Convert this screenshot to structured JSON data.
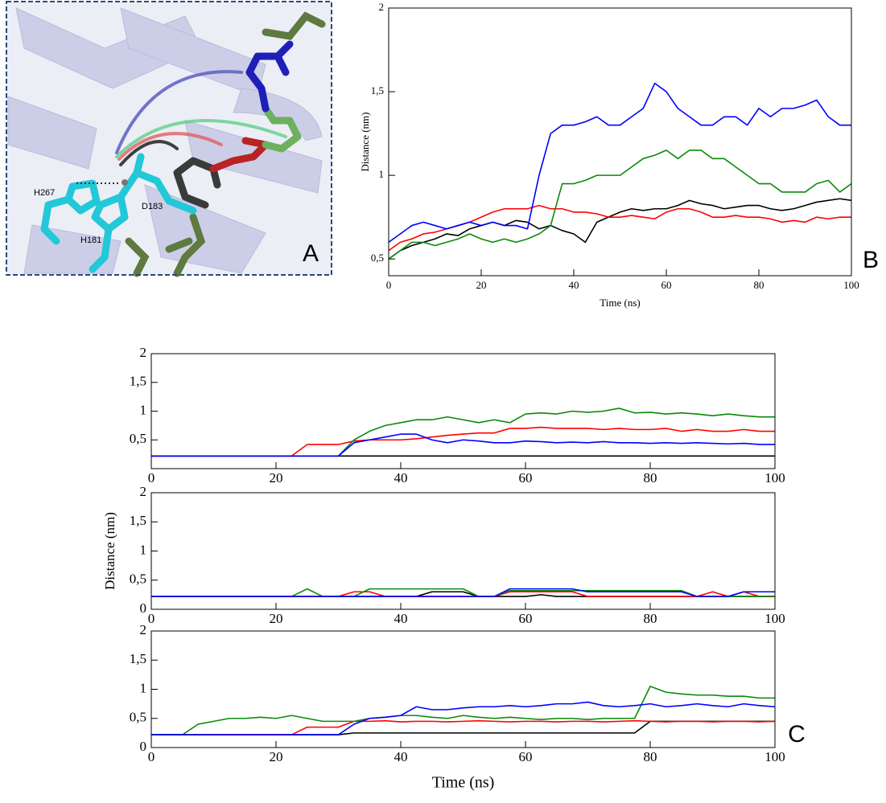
{
  "panel_a": {
    "labels": [
      "H267",
      "D183",
      "H181"
    ],
    "panel_label": "A"
  },
  "chart_data": [
    {
      "type": "line",
      "panel_label": "B",
      "x_label": "Time (ns)",
      "y_label": "Distance (nm)",
      "xlim": [
        0,
        100
      ],
      "ylim": [
        0.4,
        2
      ],
      "xticks": [
        0,
        20,
        40,
        60,
        80,
        100
      ],
      "yticks": [
        {
          "value": 0.5,
          "label": "0,5"
        },
        1,
        {
          "value": 1.5,
          "label": "1,5"
        },
        2
      ],
      "x": [
        0,
        2.5,
        5,
        7.5,
        10,
        12.5,
        15,
        17.5,
        20,
        22.5,
        25,
        27.5,
        30,
        32.5,
        35,
        37.5,
        40,
        42.5,
        45,
        47.5,
        50,
        52.5,
        55,
        57.5,
        60,
        62.5,
        65,
        67.5,
        70,
        72.5,
        75,
        77.5,
        80,
        82.5,
        85,
        87.5,
        90,
        92.5,
        95,
        97.5,
        100
      ],
      "series": [
        {
          "color": "#000000",
          "values": [
            0.5,
            0.55,
            0.58,
            0.6,
            0.62,
            0.65,
            0.64,
            0.68,
            0.7,
            0.72,
            0.7,
            0.73,
            0.72,
            0.68,
            0.7,
            0.67,
            0.65,
            0.6,
            0.72,
            0.75,
            0.78,
            0.8,
            0.79,
            0.8,
            0.8,
            0.82,
            0.85,
            0.83,
            0.82,
            0.8,
            0.81,
            0.82,
            0.82,
            0.8,
            0.79,
            0.8,
            0.82,
            0.84,
            0.85,
            0.86,
            0.85
          ]
        },
        {
          "color": "#ff0000",
          "values": [
            0.55,
            0.6,
            0.62,
            0.65,
            0.66,
            0.68,
            0.7,
            0.72,
            0.75,
            0.78,
            0.8,
            0.8,
            0.8,
            0.82,
            0.8,
            0.8,
            0.78,
            0.78,
            0.77,
            0.75,
            0.75,
            0.76,
            0.75,
            0.74,
            0.78,
            0.8,
            0.8,
            0.78,
            0.75,
            0.75,
            0.76,
            0.75,
            0.75,
            0.74,
            0.72,
            0.73,
            0.72,
            0.75,
            0.74,
            0.75,
            0.75
          ]
        },
        {
          "color": "#0a8a0a",
          "values": [
            0.5,
            0.55,
            0.6,
            0.6,
            0.58,
            0.6,
            0.62,
            0.65,
            0.62,
            0.6,
            0.62,
            0.6,
            0.62,
            0.65,
            0.7,
            0.95,
            0.95,
            0.97,
            1.0,
            1.0,
            1.0,
            1.05,
            1.1,
            1.12,
            1.15,
            1.1,
            1.15,
            1.15,
            1.1,
            1.1,
            1.05,
            1.0,
            0.95,
            0.95,
            0.9,
            0.9,
            0.9,
            0.95,
            0.97,
            0.9,
            0.95
          ]
        },
        {
          "color": "#0000ff",
          "values": [
            0.6,
            0.65,
            0.7,
            0.72,
            0.7,
            0.68,
            0.7,
            0.72,
            0.7,
            0.72,
            0.7,
            0.7,
            0.68,
            1.0,
            1.25,
            1.3,
            1.3,
            1.32,
            1.35,
            1.3,
            1.3,
            1.35,
            1.4,
            1.55,
            1.5,
            1.4,
            1.35,
            1.3,
            1.3,
            1.35,
            1.35,
            1.3,
            1.4,
            1.35,
            1.4,
            1.4,
            1.42,
            1.45,
            1.35,
            1.3,
            1.3
          ]
        }
      ]
    },
    {
      "type": "line",
      "xlim": [
        0,
        100
      ],
      "ylim": [
        0,
        2
      ],
      "xticks": [
        0,
        20,
        40,
        60,
        80,
        100
      ],
      "yticks": [
        {
          "value": 0.5,
          "label": "0,5"
        },
        1,
        {
          "value": 1.5,
          "label": "1,5"
        },
        2
      ],
      "x": [
        0,
        2.5,
        5,
        7.5,
        10,
        12.5,
        15,
        17.5,
        20,
        22.5,
        25,
        27.5,
        30,
        32.5,
        35,
        37.5,
        40,
        42.5,
        45,
        47.5,
        50,
        52.5,
        55,
        57.5,
        60,
        62.5,
        65,
        67.5,
        70,
        72.5,
        75,
        77.5,
        80,
        82.5,
        85,
        87.5,
        90,
        92.5,
        95,
        97.5,
        100
      ],
      "series": [
        {
          "color": "#000000",
          "values": [
            0.22,
            0.22,
            0.22,
            0.22,
            0.22,
            0.22,
            0.22,
            0.22,
            0.22,
            0.22,
            0.22,
            0.22,
            0.22,
            0.22,
            0.22,
            0.22,
            0.22,
            0.22,
            0.22,
            0.22,
            0.22,
            0.22,
            0.22,
            0.22,
            0.22,
            0.22,
            0.22,
            0.22,
            0.22,
            0.22,
            0.22,
            0.22,
            0.22,
            0.22,
            0.22,
            0.22,
            0.22,
            0.22,
            0.22,
            0.22,
            0.22
          ]
        },
        {
          "color": "#ff0000",
          "values": [
            0.22,
            0.22,
            0.22,
            0.22,
            0.22,
            0.22,
            0.22,
            0.22,
            0.22,
            0.22,
            0.42,
            0.42,
            0.42,
            0.48,
            0.5,
            0.5,
            0.5,
            0.52,
            0.55,
            0.58,
            0.6,
            0.62,
            0.62,
            0.7,
            0.7,
            0.72,
            0.7,
            0.7,
            0.7,
            0.68,
            0.7,
            0.68,
            0.68,
            0.7,
            0.65,
            0.68,
            0.65,
            0.65,
            0.68,
            0.65,
            0.65
          ]
        },
        {
          "color": "#0a8a0a",
          "values": [
            0.22,
            0.22,
            0.22,
            0.22,
            0.22,
            0.22,
            0.22,
            0.22,
            0.22,
            0.22,
            0.22,
            0.22,
            0.22,
            0.5,
            0.65,
            0.75,
            0.8,
            0.85,
            0.85,
            0.9,
            0.85,
            0.8,
            0.85,
            0.8,
            0.95,
            0.97,
            0.95,
            1.0,
            0.98,
            1.0,
            1.05,
            0.97,
            0.98,
            0.95,
            0.97,
            0.95,
            0.92,
            0.95,
            0.92,
            0.9,
            0.9
          ]
        },
        {
          "color": "#0000ff",
          "values": [
            0.22,
            0.22,
            0.22,
            0.22,
            0.22,
            0.22,
            0.22,
            0.22,
            0.22,
            0.22,
            0.22,
            0.22,
            0.22,
            0.45,
            0.5,
            0.55,
            0.6,
            0.6,
            0.5,
            0.45,
            0.5,
            0.48,
            0.45,
            0.45,
            0.48,
            0.47,
            0.45,
            0.46,
            0.45,
            0.47,
            0.45,
            0.45,
            0.44,
            0.45,
            0.44,
            0.45,
            0.44,
            0.43,
            0.44,
            0.42,
            0.42
          ]
        }
      ]
    },
    {
      "type": "line",
      "y_label": "Distance (nm)",
      "xlim": [
        0,
        100
      ],
      "ylim": [
        0,
        2
      ],
      "xticks": [
        0,
        20,
        40,
        60,
        80,
        100
      ],
      "yticks": [
        0,
        {
          "value": 0.5,
          "label": "0,5"
        },
        1,
        {
          "value": 1.5,
          "label": "1,5"
        },
        2
      ],
      "x": [
        0,
        2.5,
        5,
        7.5,
        10,
        12.5,
        15,
        17.5,
        20,
        22.5,
        25,
        27.5,
        30,
        32.5,
        35,
        37.5,
        40,
        42.5,
        45,
        47.5,
        50,
        52.5,
        55,
        57.5,
        60,
        62.5,
        65,
        67.5,
        70,
        72.5,
        75,
        77.5,
        80,
        82.5,
        85,
        87.5,
        90,
        92.5,
        95,
        97.5,
        100
      ],
      "series": [
        {
          "color": "#000000",
          "values": [
            0.22,
            0.22,
            0.22,
            0.22,
            0.22,
            0.22,
            0.22,
            0.22,
            0.22,
            0.22,
            0.22,
            0.22,
            0.22,
            0.22,
            0.22,
            0.22,
            0.22,
            0.22,
            0.3,
            0.3,
            0.3,
            0.22,
            0.22,
            0.22,
            0.22,
            0.25,
            0.22,
            0.22,
            0.22,
            0.22,
            0.22,
            0.22,
            0.22,
            0.22,
            0.22,
            0.22,
            0.22,
            0.22,
            0.22,
            0.22,
            0.22
          ]
        },
        {
          "color": "#ff0000",
          "values": [
            0.22,
            0.22,
            0.22,
            0.22,
            0.22,
            0.22,
            0.22,
            0.22,
            0.22,
            0.22,
            0.22,
            0.22,
            0.22,
            0.3,
            0.3,
            0.22,
            0.22,
            0.22,
            0.22,
            0.22,
            0.22,
            0.22,
            0.22,
            0.3,
            0.3,
            0.3,
            0.3,
            0.3,
            0.22,
            0.22,
            0.22,
            0.22,
            0.22,
            0.22,
            0.22,
            0.22,
            0.3,
            0.22,
            0.3,
            0.22,
            0.22
          ]
        },
        {
          "color": "#0a8a0a",
          "values": [
            0.22,
            0.22,
            0.22,
            0.22,
            0.22,
            0.22,
            0.22,
            0.22,
            0.22,
            0.22,
            0.35,
            0.22,
            0.22,
            0.22,
            0.35,
            0.35,
            0.35,
            0.35,
            0.35,
            0.35,
            0.35,
            0.22,
            0.22,
            0.32,
            0.32,
            0.32,
            0.32,
            0.32,
            0.32,
            0.32,
            0.32,
            0.32,
            0.32,
            0.32,
            0.32,
            0.22,
            0.22,
            0.22,
            0.22,
            0.22,
            0.22
          ]
        },
        {
          "color": "#0000ff",
          "values": [
            0.22,
            0.22,
            0.22,
            0.22,
            0.22,
            0.22,
            0.22,
            0.22,
            0.22,
            0.22,
            0.22,
            0.22,
            0.22,
            0.22,
            0.22,
            0.22,
            0.22,
            0.22,
            0.22,
            0.22,
            0.22,
            0.22,
            0.22,
            0.35,
            0.35,
            0.35,
            0.35,
            0.35,
            0.3,
            0.3,
            0.3,
            0.3,
            0.3,
            0.3,
            0.3,
            0.22,
            0.22,
            0.22,
            0.3,
            0.3,
            0.3
          ]
        }
      ]
    },
    {
      "type": "line",
      "panel_label": "C",
      "x_label": "Time (ns)",
      "xlim": [
        0,
        100
      ],
      "ylim": [
        0,
        2
      ],
      "xticks": [
        0,
        20,
        40,
        60,
        80,
        100
      ],
      "yticks": [
        0,
        {
          "value": 0.5,
          "label": "0,5"
        },
        1,
        {
          "value": 1.5,
          "label": "1,5"
        },
        2
      ],
      "x": [
        0,
        2.5,
        5,
        7.5,
        10,
        12.5,
        15,
        17.5,
        20,
        22.5,
        25,
        27.5,
        30,
        32.5,
        35,
        37.5,
        40,
        42.5,
        45,
        47.5,
        50,
        52.5,
        55,
        57.5,
        60,
        62.5,
        65,
        67.5,
        70,
        72.5,
        75,
        77.5,
        80,
        82.5,
        85,
        87.5,
        90,
        92.5,
        95,
        97.5,
        100
      ],
      "series": [
        {
          "color": "#000000",
          "values": [
            0.22,
            0.22,
            0.22,
            0.22,
            0.22,
            0.22,
            0.22,
            0.22,
            0.22,
            0.22,
            0.22,
            0.22,
            0.22,
            0.25,
            0.25,
            0.25,
            0.25,
            0.25,
            0.25,
            0.25,
            0.25,
            0.25,
            0.25,
            0.25,
            0.25,
            0.25,
            0.25,
            0.25,
            0.25,
            0.25,
            0.25,
            0.25,
            0.45,
            0.45,
            0.45,
            0.45,
            0.45,
            0.45,
            0.45,
            0.45,
            0.45
          ]
        },
        {
          "color": "#ff0000",
          "values": [
            0.22,
            0.22,
            0.22,
            0.22,
            0.22,
            0.22,
            0.22,
            0.22,
            0.22,
            0.22,
            0.35,
            0.35,
            0.35,
            0.45,
            0.45,
            0.46,
            0.44,
            0.45,
            0.45,
            0.44,
            0.45,
            0.46,
            0.45,
            0.44,
            0.45,
            0.45,
            0.44,
            0.45,
            0.45,
            0.44,
            0.45,
            0.46,
            0.45,
            0.44,
            0.45,
            0.45,
            0.44,
            0.45,
            0.45,
            0.44,
            0.45
          ]
        },
        {
          "color": "#0a8a0a",
          "values": [
            0.22,
            0.22,
            0.22,
            0.4,
            0.45,
            0.5,
            0.5,
            0.52,
            0.5,
            0.55,
            0.5,
            0.45,
            0.45,
            0.45,
            0.5,
            0.52,
            0.55,
            0.55,
            0.52,
            0.5,
            0.55,
            0.52,
            0.5,
            0.52,
            0.5,
            0.48,
            0.5,
            0.5,
            0.48,
            0.5,
            0.5,
            0.5,
            1.05,
            0.95,
            0.92,
            0.9,
            0.9,
            0.88,
            0.88,
            0.85,
            0.85
          ]
        },
        {
          "color": "#0000ff",
          "values": [
            0.22,
            0.22,
            0.22,
            0.22,
            0.22,
            0.22,
            0.22,
            0.22,
            0.22,
            0.22,
            0.22,
            0.22,
            0.22,
            0.4,
            0.5,
            0.52,
            0.55,
            0.7,
            0.65,
            0.65,
            0.68,
            0.7,
            0.7,
            0.72,
            0.7,
            0.72,
            0.75,
            0.75,
            0.78,
            0.72,
            0.7,
            0.72,
            0.75,
            0.7,
            0.72,
            0.75,
            0.72,
            0.7,
            0.75,
            0.72,
            0.7
          ]
        }
      ]
    }
  ]
}
